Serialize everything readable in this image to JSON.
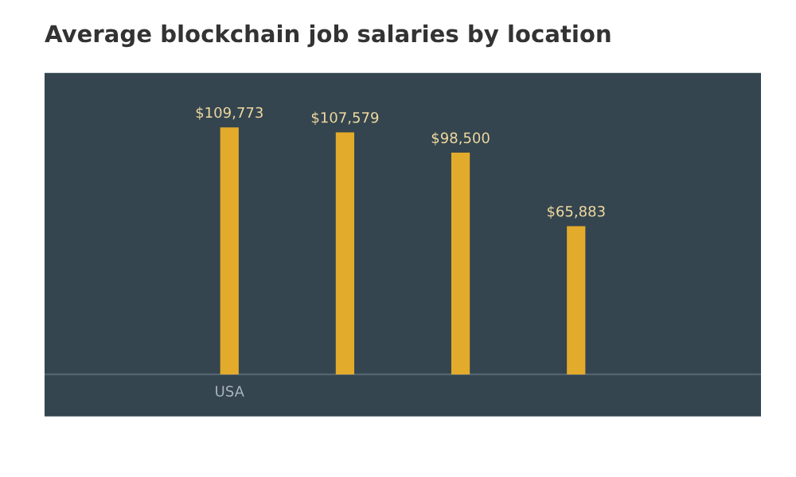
{
  "chart_data": {
    "type": "bar",
    "title": "Average blockchain job salaries by location",
    "categories": [
      "USA",
      null,
      null,
      null
    ],
    "values": [
      109773,
      107579,
      98500,
      65883
    ],
    "value_labels": [
      "$109,773",
      "$107,579",
      "$98,500",
      "$65,883"
    ],
    "color": "#e3ab2c",
    "grid": false,
    "legend": false
  }
}
